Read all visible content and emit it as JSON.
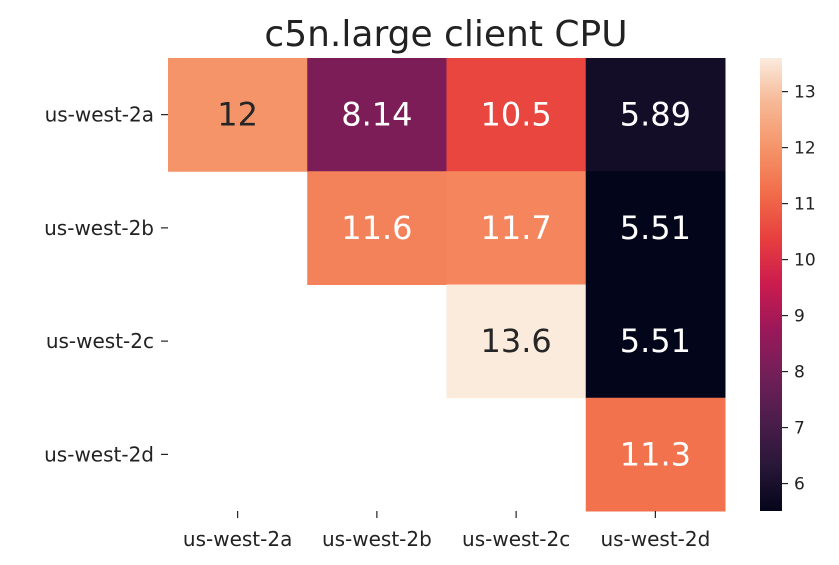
{
  "chart_data": {
    "type": "heatmap",
    "title": "c5n.large client CPU",
    "xlabel": "",
    "ylabel": "",
    "x_categories": [
      "us-west-2a",
      "us-west-2b",
      "us-west-2c",
      "us-west-2d"
    ],
    "y_categories": [
      "us-west-2a",
      "us-west-2b",
      "us-west-2c",
      "us-west-2d"
    ],
    "values": [
      [
        12,
        8.14,
        10.5,
        5.89
      ],
      [
        null,
        11.6,
        11.7,
        5.51
      ],
      [
        null,
        null,
        13.6,
        5.51
      ],
      [
        null,
        null,
        null,
        11.3
      ]
    ],
    "cell_labels": [
      [
        "12",
        "8.14",
        "10.5",
        "5.89"
      ],
      [
        "",
        "11.6",
        "11.7",
        "5.51"
      ],
      [
        "",
        "",
        "13.6",
        "5.51"
      ],
      [
        "",
        "",
        "",
        "11.3"
      ]
    ],
    "colormap": "rocket",
    "colorbar": {
      "min": 5.51,
      "max": 13.6,
      "ticks": [
        6,
        7,
        8,
        9,
        10,
        11,
        12,
        13
      ]
    },
    "colors": {
      "text_dark": "#262626",
      "text_light": "#ffffff"
    }
  }
}
